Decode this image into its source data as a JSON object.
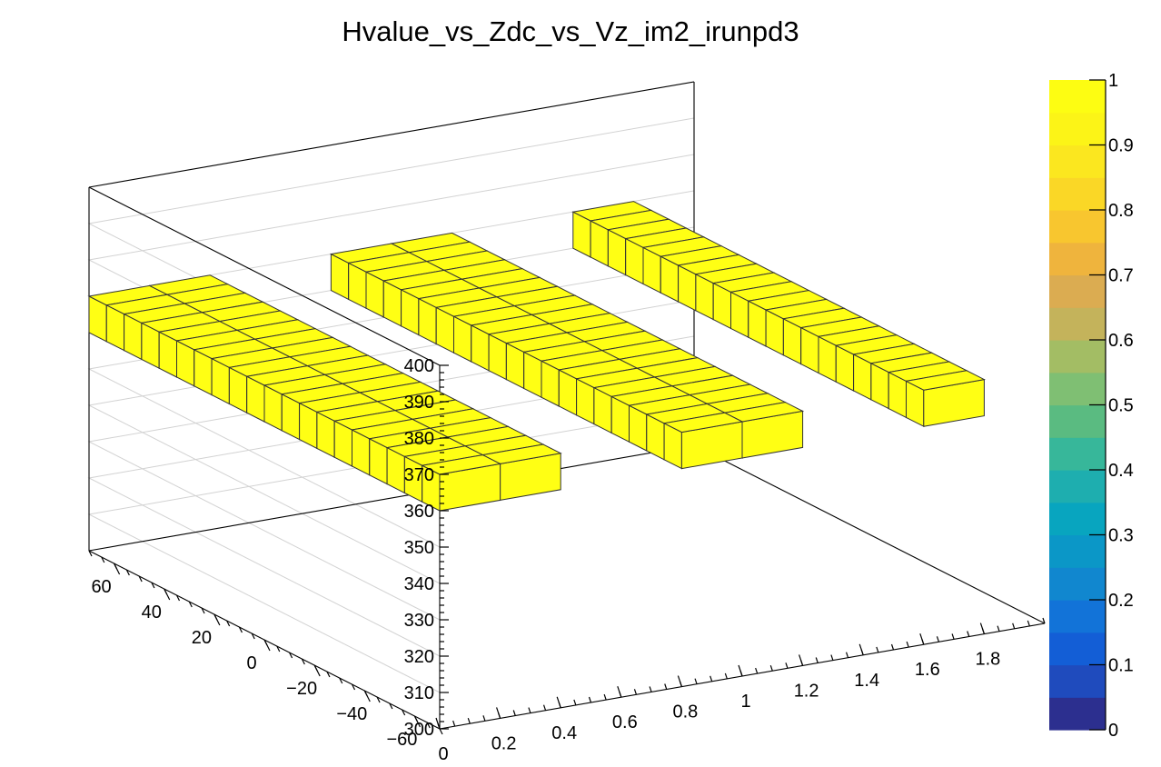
{
  "chart_data": {
    "type": "lego3d",
    "title": "Hvalue_vs_Zdc_vs_Vz_im2_irunpd3",
    "x_axis": {
      "range": [
        0,
        2
      ],
      "ticks": [
        0,
        0.2,
        0.4,
        0.6,
        0.8,
        1,
        1.2,
        1.4,
        1.6,
        1.8
      ],
      "tick_labels": [
        "0",
        "0.2",
        "0.4",
        "0.6",
        "0.8",
        "1",
        "1.2",
        "1.4",
        "1.6",
        "1.8"
      ]
    },
    "y_axis": {
      "range": [
        -70,
        70
      ],
      "ticks": [
        -60,
        -40,
        -20,
        0,
        20,
        40,
        60
      ],
      "tick_labels": [
        "−60",
        "−40",
        "−20",
        "0",
        "20",
        "40",
        "60"
      ]
    },
    "z_axis": {
      "range": [
        300,
        400
      ],
      "ticks": [
        300,
        310,
        320,
        330,
        340,
        350,
        360,
        370,
        380,
        390,
        400
      ],
      "tick_labels": [
        "300",
        "310",
        "320",
        "330",
        "340",
        "350",
        "360",
        "370",
        "380",
        "390",
        "400"
      ]
    },
    "colorbar": {
      "range": [
        0,
        1
      ],
      "ticks": [
        0,
        0.1,
        0.2,
        0.3,
        0.4,
        0.5,
        0.6,
        0.7,
        0.8,
        0.9,
        1
      ],
      "tick_labels": [
        "0",
        "0.1",
        "0.2",
        "0.3",
        "0.4",
        "0.5",
        "0.6",
        "0.7",
        "0.8",
        "0.9",
        "1"
      ]
    },
    "cell_value": 1,
    "strips": [
      {
        "x_range": [
          0,
          0.2
        ],
        "z_range": [
          360,
          370
        ],
        "y_bins": [
          -70,
          -63,
          -56,
          -49,
          -42,
          -35,
          -28,
          -21,
          -14,
          -7,
          0,
          7,
          14,
          21,
          28,
          35,
          42,
          49,
          56,
          63,
          70
        ]
      },
      {
        "x_range": [
          0.2,
          0.4
        ],
        "z_range": [
          360,
          370
        ],
        "y_bins": [
          -70,
          -63,
          -56,
          -49,
          -42,
          -35,
          -28,
          -21,
          -14,
          -7,
          0,
          7,
          14,
          21,
          28,
          35,
          42,
          49,
          56,
          63,
          70
        ]
      },
      {
        "x_range": [
          0.8,
          1.0
        ],
        "z_range": [
          360,
          370
        ],
        "y_bins": [
          -70,
          -63,
          -56,
          -49,
          -42,
          -35,
          -28,
          -21,
          -14,
          -7,
          0,
          7,
          14,
          21,
          28,
          35,
          42,
          49,
          56,
          63,
          70
        ]
      },
      {
        "x_range": [
          1.0,
          1.2
        ],
        "z_range": [
          360,
          370
        ],
        "y_bins": [
          -70,
          -63,
          -56,
          -49,
          -42,
          -35,
          -28,
          -21,
          -14,
          -7,
          0,
          7,
          14,
          21,
          28,
          35,
          42,
          49,
          56,
          63,
          70
        ]
      },
      {
        "x_range": [
          1.6,
          1.8
        ],
        "z_range": [
          360,
          370
        ],
        "y_bins": [
          -70,
          -63,
          -56,
          -49,
          -42,
          -35,
          -28,
          -21,
          -14,
          -7,
          0,
          7,
          14,
          21,
          28,
          35,
          42,
          49,
          56,
          63,
          70
        ]
      }
    ],
    "bar_color": "#ffff14",
    "palette": [
      "#2c2f8f",
      "#1f4bbd",
      "#135ed6",
      "#1273d8",
      "#1187cf",
      "#0b97c7",
      "#08a5bf",
      "#1eaeaf",
      "#37b79a",
      "#5abb81",
      "#7fbf73",
      "#a3bd64",
      "#c4b35b",
      "#dbac51",
      "#efb43d",
      "#f8c62f",
      "#fad726",
      "#fbe71f",
      "#fcf417",
      "#fdfd12"
    ]
  }
}
